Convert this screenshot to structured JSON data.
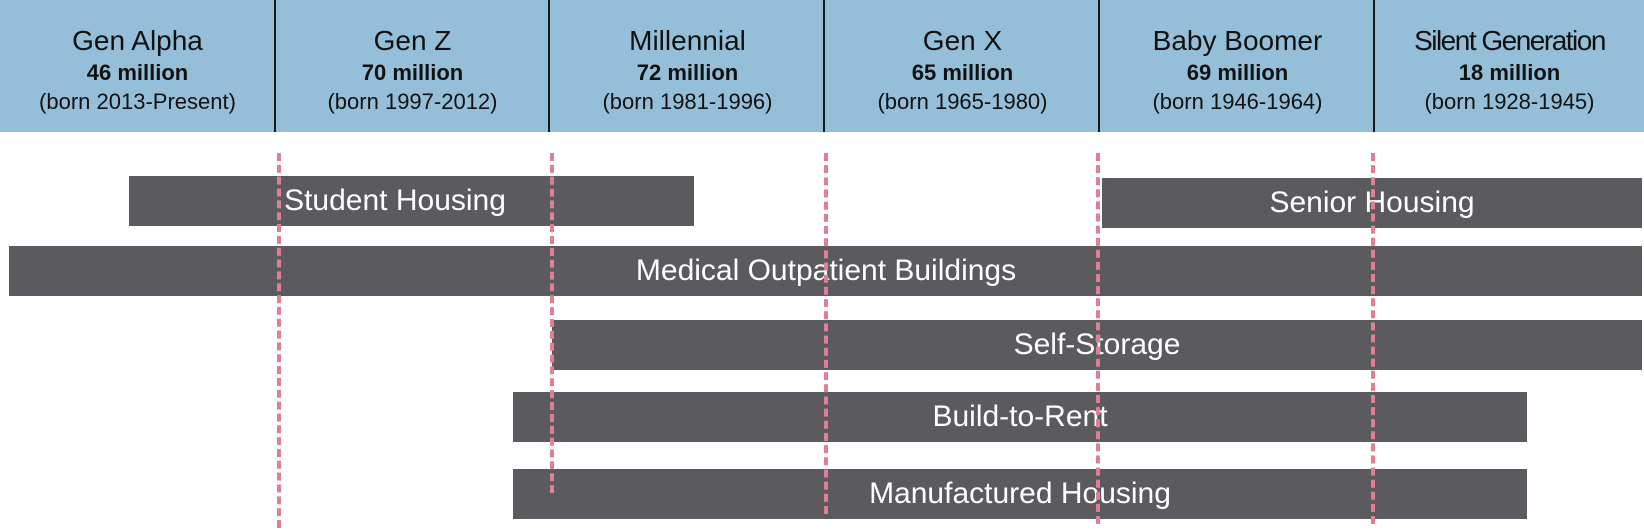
{
  "generations": [
    {
      "name": "Gen Alpha",
      "population": "46 million",
      "born": "(born 2013-Present)"
    },
    {
      "name": "Gen Z",
      "population": "70 million",
      "born": "(born 1997-2012)"
    },
    {
      "name": "Millennial",
      "population": "72 million",
      "born": "(born 1981-1996)"
    },
    {
      "name": "Gen X",
      "population": "65 million",
      "born": "(born 1965-1980)"
    },
    {
      "name": "Baby Boomer",
      "population": "69 million",
      "born": "(born 1946-1964)"
    },
    {
      "name": "Silent Generation",
      "population": "18 million",
      "born": "(born 1928-1945)"
    }
  ],
  "sectors": [
    {
      "label": "Student Housing"
    },
    {
      "label": "Senior Housing"
    },
    {
      "label": "Medical Outpatient Buildings"
    },
    {
      "label": "Self-Storage"
    },
    {
      "label": "Build-to-Rent"
    },
    {
      "label": "Manufactured Housing"
    }
  ],
  "colors": {
    "header_background": "#95bfd8",
    "bar_fill": "#5b5a5f",
    "boundary_line": "#de7f94",
    "bar_text": "#ffffff"
  }
}
